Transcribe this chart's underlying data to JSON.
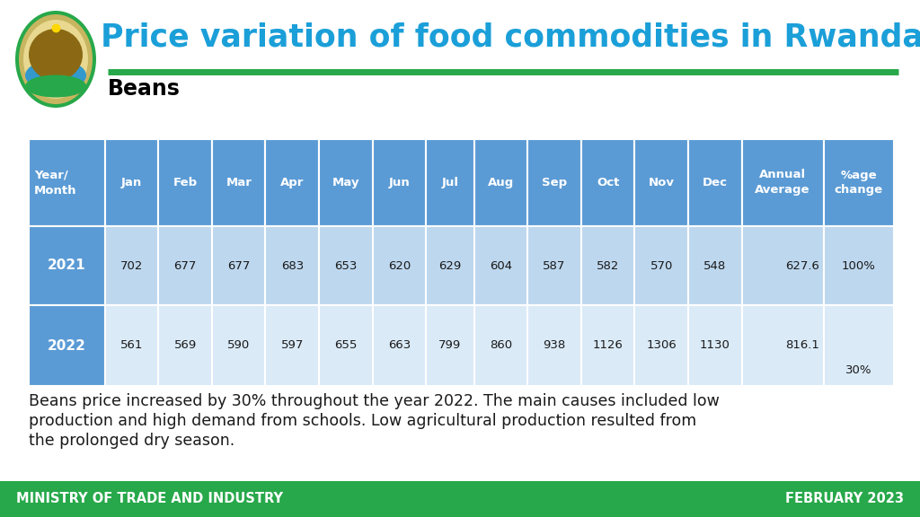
{
  "title": "Price variation of food commodities in Rwanda",
  "title_color": "#1B9FD8",
  "subtitle": "Beans",
  "header_bg": "#5B9BD5",
  "header_text_color": "#FFFFFF",
  "row1_year_bg": "#5B9BD5",
  "row1_data_bg": "#BDD7EE",
  "row2_year_bg": "#5B9BD5",
  "row2_data_bg": "#DAEAF7",
  "columns": [
    "Year/\nMonth",
    "Jan",
    "Feb",
    "Mar",
    "Apr",
    "May",
    "Jun",
    "Jul",
    "Aug",
    "Sep",
    "Oct",
    "Nov",
    "Dec",
    "Annual\nAverage",
    "%age\nchange"
  ],
  "row1_year": "2021",
  "row1_values": [
    "702",
    "677",
    "677",
    "683",
    "653",
    "620",
    "629",
    "604",
    "587",
    "582",
    "570",
    "548",
    "627.6",
    "100%"
  ],
  "row2_year": "2022",
  "row2_values": [
    "561",
    "569",
    "590",
    "597",
    "655",
    "663",
    "799",
    "860",
    "938",
    "1126",
    "1306",
    "1130",
    "816.1",
    "30%"
  ],
  "footer_text_left": "MINISTRY OF TRADE AND INDUSTRY",
  "footer_text_right": "FEBRUARY 2023",
  "footer_bg": "#27A84A",
  "footer_text_color": "#FFFFFF",
  "description_line1": "Beans price increased by 30% throughout the year 2022. The main causes included low",
  "description_line2": "production and high demand from schools. Low agricultural production resulted from",
  "description_line3": "the prolonged dry season.",
  "green_line_color": "#27A84A",
  "logo_outer_color": "#27A84A",
  "logo_inner_color": "#1B9FD8",
  "col_widths_rel": [
    1.35,
    0.95,
    0.95,
    0.95,
    0.95,
    0.95,
    0.95,
    0.85,
    0.95,
    0.95,
    0.95,
    0.95,
    0.95,
    1.45,
    1.25
  ]
}
